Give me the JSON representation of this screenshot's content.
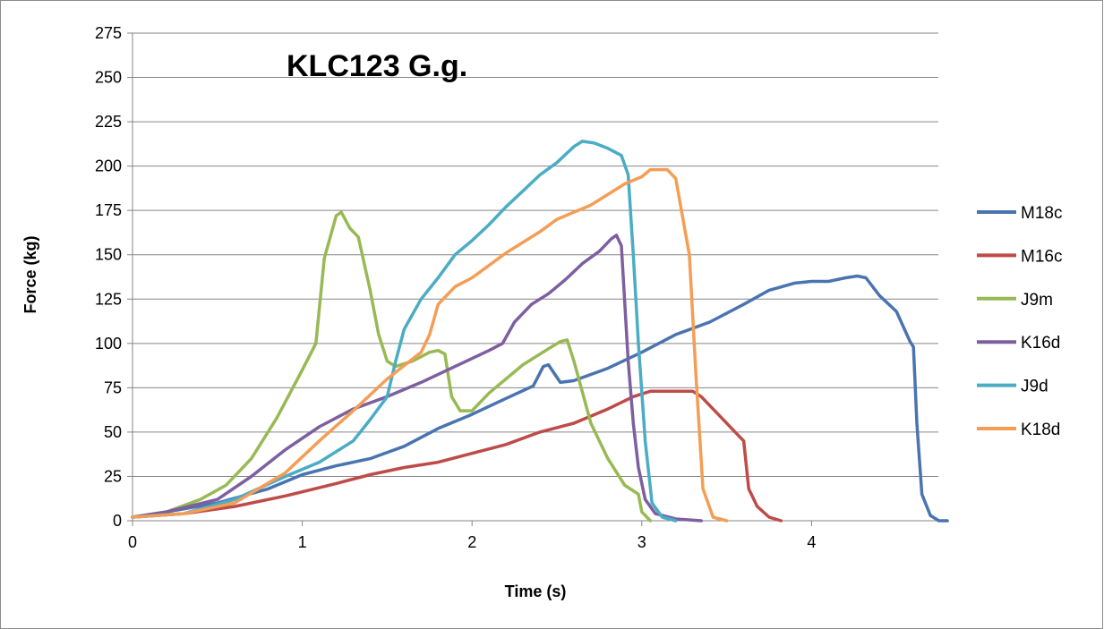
{
  "chart_data": {
    "type": "line",
    "title": "KLC123 G.g.",
    "xlabel": "Time (s)",
    "ylabel": "Force (kg)",
    "xlim": [
      0,
      4.8
    ],
    "ylim": [
      0,
      275
    ],
    "xticks": [
      "0",
      "1",
      "2",
      "3",
      "4"
    ],
    "yticks": [
      "0",
      "25",
      "50",
      "75",
      "100",
      "125",
      "150",
      "175",
      "200",
      "225",
      "250",
      "275"
    ],
    "grid": "horizontal",
    "legend_position": "right",
    "series": [
      {
        "name": "M18c",
        "color": "#4a74b1",
        "points": [
          [
            0,
            2
          ],
          [
            0.2,
            5
          ],
          [
            0.5,
            10
          ],
          [
            0.8,
            18
          ],
          [
            1.0,
            26
          ],
          [
            1.2,
            31
          ],
          [
            1.4,
            35
          ],
          [
            1.6,
            42
          ],
          [
            1.8,
            52
          ],
          [
            2.0,
            60
          ],
          [
            2.2,
            69
          ],
          [
            2.36,
            76
          ],
          [
            2.42,
            87
          ],
          [
            2.45,
            88
          ],
          [
            2.52,
            78
          ],
          [
            2.6,
            79
          ],
          [
            2.8,
            86
          ],
          [
            3.0,
            95
          ],
          [
            3.2,
            105
          ],
          [
            3.4,
            112
          ],
          [
            3.6,
            122
          ],
          [
            3.75,
            130
          ],
          [
            3.9,
            134
          ],
          [
            4.0,
            135
          ],
          [
            4.1,
            135
          ],
          [
            4.2,
            137
          ],
          [
            4.27,
            138
          ],
          [
            4.32,
            137
          ],
          [
            4.4,
            127
          ],
          [
            4.5,
            118
          ],
          [
            4.58,
            101
          ],
          [
            4.6,
            98
          ],
          [
            4.62,
            55
          ],
          [
            4.65,
            15
          ],
          [
            4.7,
            3
          ],
          [
            4.75,
            0
          ],
          [
            4.8,
            0
          ]
        ]
      },
      {
        "name": "M16c",
        "color": "#be4b48",
        "points": [
          [
            0,
            2
          ],
          [
            0.3,
            4
          ],
          [
            0.6,
            8
          ],
          [
            0.9,
            14
          ],
          [
            1.2,
            21
          ],
          [
            1.4,
            26
          ],
          [
            1.6,
            30
          ],
          [
            1.8,
            33
          ],
          [
            2.0,
            38
          ],
          [
            2.2,
            43
          ],
          [
            2.4,
            50
          ],
          [
            2.6,
            55
          ],
          [
            2.8,
            63
          ],
          [
            2.95,
            70
          ],
          [
            3.05,
            73
          ],
          [
            3.15,
            73
          ],
          [
            3.3,
            73
          ],
          [
            3.35,
            70
          ],
          [
            3.45,
            60
          ],
          [
            3.58,
            47
          ],
          [
            3.6,
            45
          ],
          [
            3.63,
            18
          ],
          [
            3.68,
            8
          ],
          [
            3.75,
            2
          ],
          [
            3.82,
            0
          ]
        ]
      },
      {
        "name": "J9m",
        "color": "#98b954",
        "points": [
          [
            0,
            2
          ],
          [
            0.2,
            5
          ],
          [
            0.4,
            12
          ],
          [
            0.55,
            20
          ],
          [
            0.7,
            35
          ],
          [
            0.85,
            58
          ],
          [
            1.0,
            85
          ],
          [
            1.08,
            100
          ],
          [
            1.13,
            148
          ],
          [
            1.2,
            172
          ],
          [
            1.23,
            174
          ],
          [
            1.28,
            165
          ],
          [
            1.33,
            160
          ],
          [
            1.4,
            130
          ],
          [
            1.45,
            105
          ],
          [
            1.5,
            90
          ],
          [
            1.55,
            87
          ],
          [
            1.65,
            90
          ],
          [
            1.75,
            95
          ],
          [
            1.8,
            96
          ],
          [
            1.84,
            94
          ],
          [
            1.88,
            70
          ],
          [
            1.93,
            62
          ],
          [
            2.0,
            62
          ],
          [
            2.1,
            72
          ],
          [
            2.3,
            88
          ],
          [
            2.45,
            97
          ],
          [
            2.52,
            101
          ],
          [
            2.56,
            102
          ],
          [
            2.6,
            90
          ],
          [
            2.7,
            55
          ],
          [
            2.8,
            35
          ],
          [
            2.9,
            20
          ],
          [
            2.98,
            15
          ],
          [
            3.0,
            5
          ],
          [
            3.05,
            0
          ]
        ]
      },
      {
        "name": "K16d",
        "color": "#7d5fa0",
        "points": [
          [
            0,
            2
          ],
          [
            0.2,
            5
          ],
          [
            0.5,
            12
          ],
          [
            0.7,
            25
          ],
          [
            0.9,
            40
          ],
          [
            1.1,
            53
          ],
          [
            1.3,
            63
          ],
          [
            1.5,
            70
          ],
          [
            1.7,
            78
          ],
          [
            1.9,
            87
          ],
          [
            2.1,
            96
          ],
          [
            2.18,
            100
          ],
          [
            2.25,
            112
          ],
          [
            2.35,
            122
          ],
          [
            2.45,
            128
          ],
          [
            2.55,
            136
          ],
          [
            2.65,
            145
          ],
          [
            2.75,
            152
          ],
          [
            2.82,
            159
          ],
          [
            2.85,
            161
          ],
          [
            2.88,
            155
          ],
          [
            2.92,
            90
          ],
          [
            2.95,
            55
          ],
          [
            2.98,
            30
          ],
          [
            3.02,
            12
          ],
          [
            3.08,
            4
          ],
          [
            3.2,
            1
          ],
          [
            3.35,
            0
          ]
        ]
      },
      {
        "name": "J9d",
        "color": "#4aacc5",
        "points": [
          [
            0,
            2
          ],
          [
            0.3,
            4
          ],
          [
            0.6,
            12
          ],
          [
            0.9,
            25
          ],
          [
            1.1,
            33
          ],
          [
            1.3,
            45
          ],
          [
            1.4,
            57
          ],
          [
            1.5,
            70
          ],
          [
            1.55,
            90
          ],
          [
            1.6,
            108
          ],
          [
            1.7,
            125
          ],
          [
            1.8,
            137
          ],
          [
            1.9,
            150
          ],
          [
            2.0,
            158
          ],
          [
            2.1,
            167
          ],
          [
            2.2,
            177
          ],
          [
            2.3,
            186
          ],
          [
            2.4,
            195
          ],
          [
            2.5,
            202
          ],
          [
            2.6,
            211
          ],
          [
            2.65,
            214
          ],
          [
            2.72,
            213
          ],
          [
            2.8,
            210
          ],
          [
            2.88,
            206
          ],
          [
            2.92,
            195
          ],
          [
            2.95,
            150
          ],
          [
            2.98,
            100
          ],
          [
            3.02,
            45
          ],
          [
            3.06,
            10
          ],
          [
            3.12,
            2
          ],
          [
            3.2,
            0
          ]
        ]
      },
      {
        "name": "K18d",
        "color": "#f59d55",
        "points": [
          [
            0,
            2
          ],
          [
            0.3,
            4
          ],
          [
            0.6,
            10
          ],
          [
            0.9,
            27
          ],
          [
            1.1,
            45
          ],
          [
            1.3,
            62
          ],
          [
            1.5,
            80
          ],
          [
            1.7,
            95
          ],
          [
            1.75,
            105
          ],
          [
            1.8,
            122
          ],
          [
            1.9,
            132
          ],
          [
            2.0,
            137
          ],
          [
            2.2,
            151
          ],
          [
            2.4,
            163
          ],
          [
            2.5,
            170
          ],
          [
            2.7,
            178
          ],
          [
            2.9,
            190
          ],
          [
            3.0,
            194
          ],
          [
            3.05,
            198
          ],
          [
            3.15,
            198
          ],
          [
            3.2,
            193
          ],
          [
            3.28,
            150
          ],
          [
            3.32,
            80
          ],
          [
            3.36,
            18
          ],
          [
            3.42,
            2
          ],
          [
            3.5,
            0
          ]
        ]
      }
    ]
  }
}
